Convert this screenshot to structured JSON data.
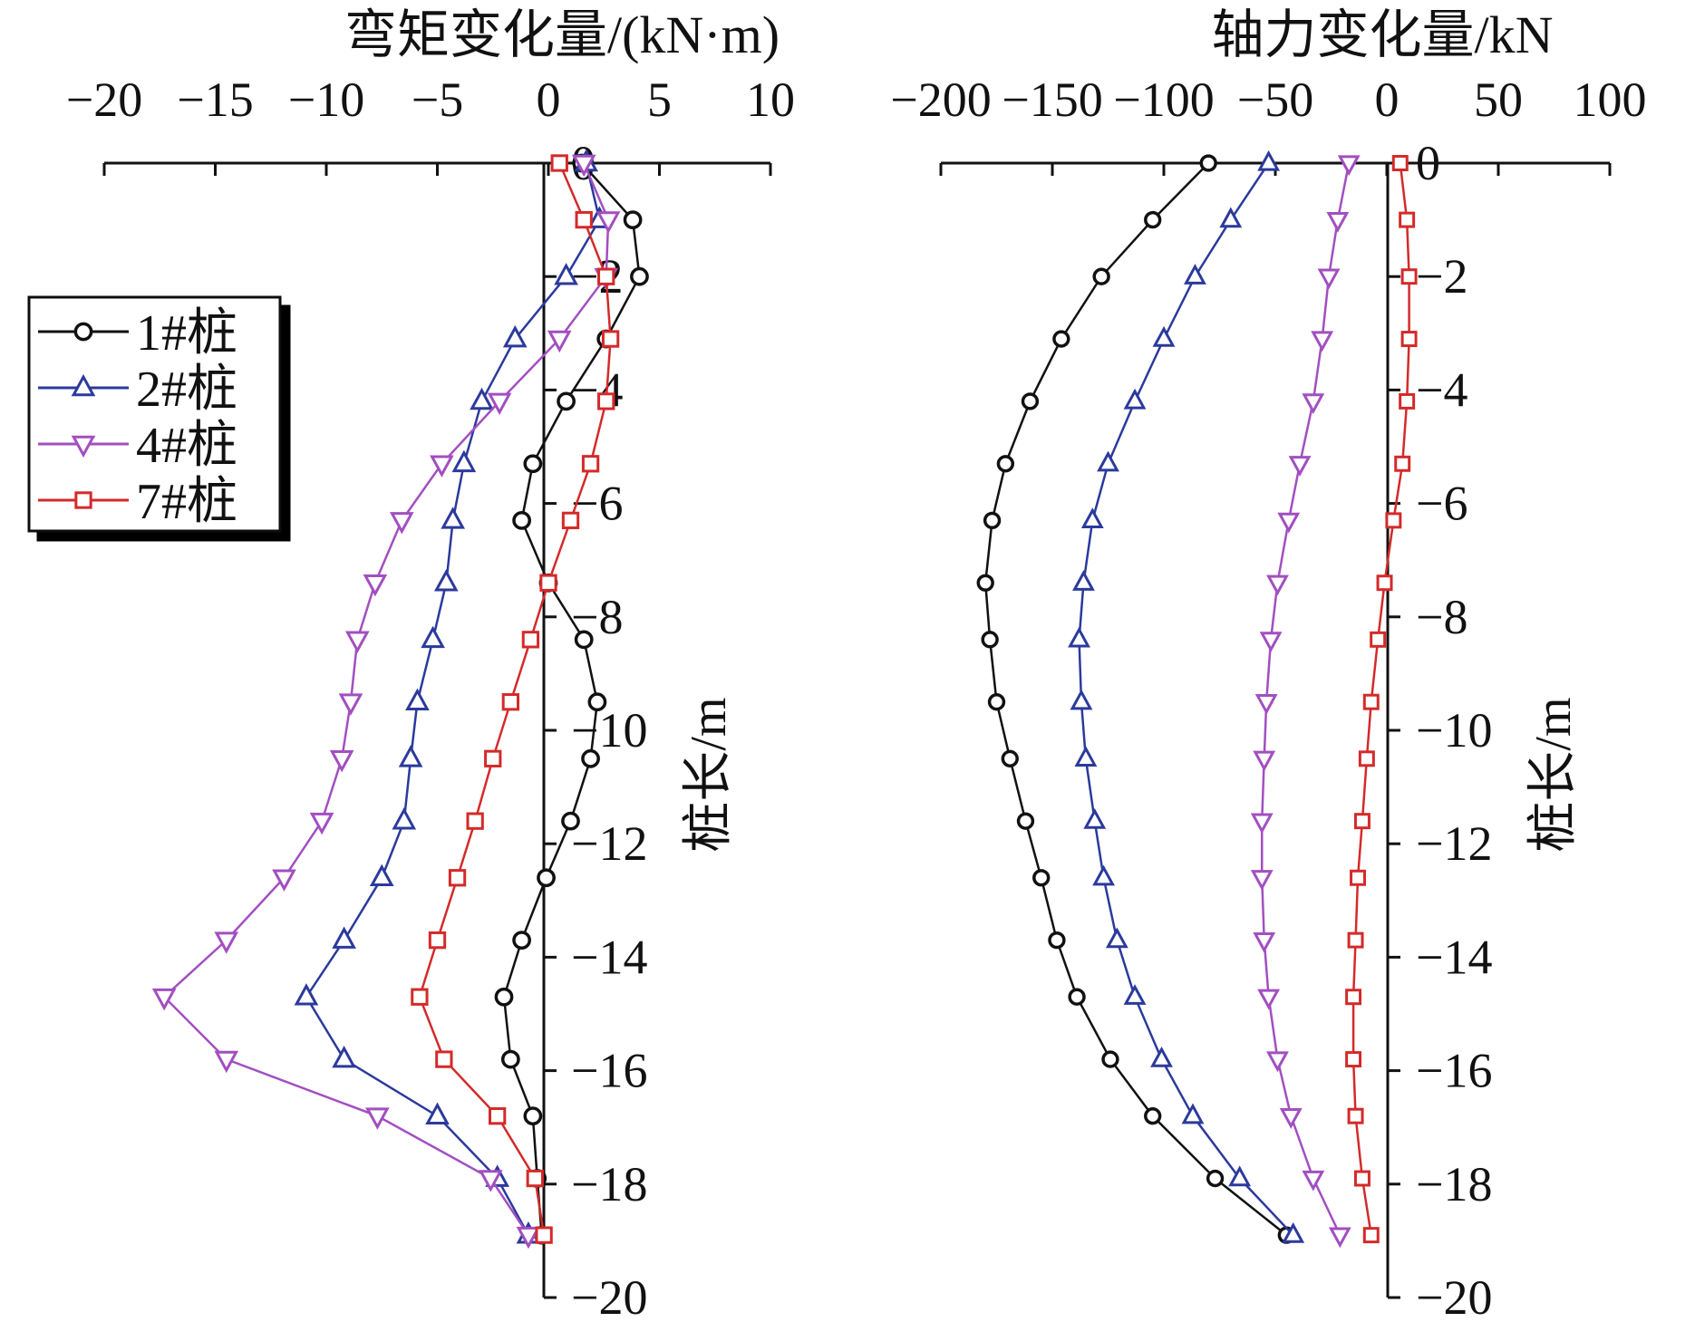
{
  "chart_data": [
    {
      "type": "line",
      "title": "弯矩变化量/(kN·m)",
      "xlabel": "弯矩变化量/(kN·m)",
      "ylabel": "桩长/m",
      "xlim": [
        -20,
        10
      ],
      "ylim": [
        -20,
        0
      ],
      "xticks": [
        -20,
        -15,
        -10,
        -5,
        0,
        5,
        10
      ],
      "yticks": [
        0,
        -2,
        -4,
        -6,
        -8,
        -10,
        -12,
        -14,
        -16,
        -18,
        -20
      ],
      "legend_position": "upper-left",
      "series": [
        {
          "name": "1#桩",
          "marker": "circle",
          "color": "#111111",
          "points": [
            [
              1.5,
              0
            ],
            [
              3.8,
              -1
            ],
            [
              4.1,
              -2
            ],
            [
              2.6,
              -3.1
            ],
            [
              0.8,
              -4.2
            ],
            [
              -0.7,
              -5.3
            ],
            [
              -1.2,
              -6.3
            ],
            [
              0,
              -7.4
            ],
            [
              1.6,
              -8.4
            ],
            [
              2.2,
              -9.5
            ],
            [
              1.9,
              -10.5
            ],
            [
              1,
              -11.6
            ],
            [
              -0.1,
              -12.6
            ],
            [
              -1.2,
              -13.7
            ],
            [
              -2,
              -14.7
            ],
            [
              -1.7,
              -15.8
            ],
            [
              -0.7,
              -16.8
            ],
            [
              -0.5,
              -17.9
            ],
            [
              -0.3,
              -18.9
            ]
          ]
        },
        {
          "name": "2#桩",
          "marker": "triangle-up",
          "color": "#2b3a9c",
          "points": [
            [
              1.7,
              0
            ],
            [
              2.3,
              -1
            ],
            [
              0.8,
              -2
            ],
            [
              -1.5,
              -3.1
            ],
            [
              -3,
              -4.2
            ],
            [
              -3.8,
              -5.3
            ],
            [
              -4.3,
              -6.3
            ],
            [
              -4.6,
              -7.4
            ],
            [
              -5.2,
              -8.4
            ],
            [
              -5.9,
              -9.5
            ],
            [
              -6.2,
              -10.5
            ],
            [
              -6.5,
              -11.6
            ],
            [
              -7.5,
              -12.6
            ],
            [
              -9.2,
              -13.7
            ],
            [
              -10.9,
              -14.7
            ],
            [
              -9.2,
              -15.8
            ],
            [
              -5,
              -16.8
            ],
            [
              -2.3,
              -17.9
            ],
            [
              -0.9,
              -18.9
            ]
          ]
        },
        {
          "name": "4#桩",
          "marker": "triangle-down",
          "color": "#a24fc0",
          "points": [
            [
              1.6,
              0
            ],
            [
              2.7,
              -1
            ],
            [
              2.6,
              -2
            ],
            [
              0.5,
              -3.1
            ],
            [
              -2.2,
              -4.2
            ],
            [
              -4.8,
              -5.3
            ],
            [
              -6.6,
              -6.3
            ],
            [
              -7.8,
              -7.4
            ],
            [
              -8.6,
              -8.4
            ],
            [
              -8.9,
              -9.5
            ],
            [
              -9.3,
              -10.5
            ],
            [
              -10.2,
              -11.6
            ],
            [
              -11.9,
              -12.6
            ],
            [
              -14.5,
              -13.7
            ],
            [
              -17.3,
              -14.7
            ],
            [
              -14.5,
              -15.8
            ],
            [
              -7.7,
              -16.8
            ],
            [
              -2.6,
              -17.9
            ],
            [
              -0.9,
              -18.9
            ]
          ]
        },
        {
          "name": "7#桩",
          "marker": "square",
          "color": "#d42a2a",
          "points": [
            [
              0.5,
              0
            ],
            [
              1.6,
              -1
            ],
            [
              2.6,
              -2
            ],
            [
              2.8,
              -3.1
            ],
            [
              2.6,
              -4.2
            ],
            [
              1.9,
              -5.3
            ],
            [
              1,
              -6.3
            ],
            [
              0,
              -7.4
            ],
            [
              -0.8,
              -8.4
            ],
            [
              -1.7,
              -9.5
            ],
            [
              -2.5,
              -10.5
            ],
            [
              -3.3,
              -11.6
            ],
            [
              -4.1,
              -12.6
            ],
            [
              -5,
              -13.7
            ],
            [
              -5.8,
              -14.7
            ],
            [
              -4.7,
              -15.8
            ],
            [
              -2.3,
              -16.8
            ],
            [
              -0.6,
              -17.9
            ],
            [
              -0.2,
              -18.9
            ]
          ]
        }
      ]
    },
    {
      "type": "line",
      "title": "轴力变化量/kN",
      "xlabel": "轴力变化量/kN",
      "ylabel": "桩长/m",
      "xlim": [
        -200,
        100
      ],
      "ylim": [
        -20,
        0
      ],
      "xticks": [
        -200,
        -150,
        -100,
        -50,
        0,
        50,
        100
      ],
      "yticks": [
        0,
        -2,
        -4,
        -6,
        -8,
        -10,
        -12,
        -14,
        -16,
        -18,
        -20
      ],
      "series": [
        {
          "name": "1#桩",
          "marker": "circle",
          "color": "#111111",
          "points": [
            [
              -80,
              0
            ],
            [
              -105,
              -1
            ],
            [
              -128,
              -2
            ],
            [
              -146,
              -3.1
            ],
            [
              -160,
              -4.2
            ],
            [
              -171,
              -5.3
            ],
            [
              -177,
              -6.3
            ],
            [
              -180,
              -7.4
            ],
            [
              -178,
              -8.4
            ],
            [
              -175,
              -9.5
            ],
            [
              -169,
              -10.5
            ],
            [
              -162,
              -11.6
            ],
            [
              -155,
              -12.6
            ],
            [
              -148,
              -13.7
            ],
            [
              -139,
              -14.7
            ],
            [
              -124,
              -15.8
            ],
            [
              -105,
              -16.8
            ],
            [
              -77,
              -17.9
            ],
            [
              -45,
              -18.9
            ]
          ]
        },
        {
          "name": "2#桩",
          "marker": "triangle-up",
          "color": "#2b3a9c",
          "points": [
            [
              -53,
              0
            ],
            [
              -70,
              -1
            ],
            [
              -86,
              -2
            ],
            [
              -100,
              -3.1
            ],
            [
              -113,
              -4.2
            ],
            [
              -125,
              -5.3
            ],
            [
              -132,
              -6.3
            ],
            [
              -136,
              -7.4
            ],
            [
              -138,
              -8.4
            ],
            [
              -137,
              -9.5
            ],
            [
              -135,
              -10.5
            ],
            [
              -131,
              -11.6
            ],
            [
              -127,
              -12.6
            ],
            [
              -121,
              -13.7
            ],
            [
              -113,
              -14.7
            ],
            [
              -101,
              -15.8
            ],
            [
              -87,
              -16.8
            ],
            [
              -66,
              -17.9
            ],
            [
              -42,
              -18.9
            ]
          ]
        },
        {
          "name": "4#桩",
          "marker": "triangle-down",
          "color": "#a24fc0",
          "points": [
            [
              -17,
              0
            ],
            [
              -22,
              -1
            ],
            [
              -26,
              -2
            ],
            [
              -29,
              -3.1
            ],
            [
              -33,
              -4.2
            ],
            [
              -39,
              -5.3
            ],
            [
              -44,
              -6.3
            ],
            [
              -49,
              -7.4
            ],
            [
              -52,
              -8.4
            ],
            [
              -54,
              -9.5
            ],
            [
              -55,
              -10.5
            ],
            [
              -56,
              -11.6
            ],
            [
              -56,
              -12.6
            ],
            [
              -55,
              -13.7
            ],
            [
              -53,
              -14.7
            ],
            [
              -49,
              -15.8
            ],
            [
              -43,
              -16.8
            ],
            [
              -33,
              -17.9
            ],
            [
              -21,
              -18.9
            ]
          ]
        },
        {
          "name": "7#桩",
          "marker": "square",
          "color": "#d42a2a",
          "points": [
            [
              6,
              0
            ],
            [
              9,
              -1
            ],
            [
              10,
              -2
            ],
            [
              10,
              -3.1
            ],
            [
              9,
              -4.2
            ],
            [
              7,
              -5.3
            ],
            [
              3,
              -6.3
            ],
            [
              -1,
              -7.4
            ],
            [
              -4,
              -8.4
            ],
            [
              -7,
              -9.5
            ],
            [
              -9,
              -10.5
            ],
            [
              -11,
              -11.6
            ],
            [
              -13,
              -12.6
            ],
            [
              -14,
              -13.7
            ],
            [
              -15,
              -14.7
            ],
            [
              -15,
              -15.8
            ],
            [
              -14,
              -16.8
            ],
            [
              -11,
              -17.9
            ],
            [
              -7,
              -18.9
            ]
          ]
        }
      ]
    }
  ]
}
